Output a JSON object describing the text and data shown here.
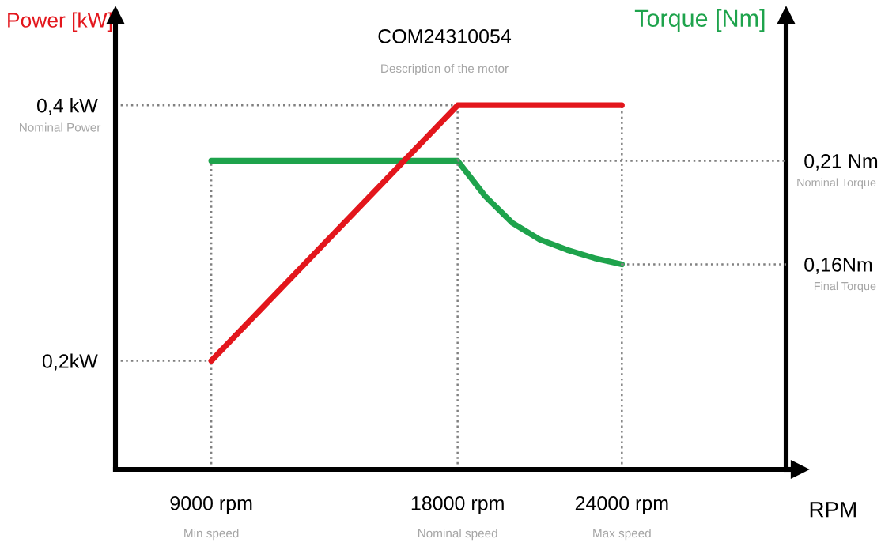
{
  "chart_data": {
    "type": "line",
    "title": "COM24310054",
    "subtitle": "Description of the motor",
    "xlabel": "RPM",
    "ylabel": "Power [kW]",
    "y2label": "Torque [Nm]",
    "series": [
      {
        "color": "#e3161c",
        "x": [
          9000,
          18000,
          24000
        ],
        "values": [
          0.2,
          0.4,
          0.4
        ]
      },
      {
        "color": "#1ea34c",
        "axis": "y2",
        "x": [
          9000,
          18000,
          19000,
          20000,
          21000,
          22000,
          23000,
          24000
        ],
        "values": [
          0.21,
          0.21,
          0.193,
          0.18,
          0.172,
          0.167,
          0.163,
          0.16
        ]
      }
    ],
    "xlim": [
      5500,
      30000
    ],
    "ylim": [
      0.115,
      0.47
    ],
    "y2lim": [
      0.061,
      0.28
    ],
    "xticks": [
      {
        "value": 9000,
        "label": "9000 rpm"
      },
      {
        "value": 18000,
        "label": "18000 rpm"
      },
      {
        "value": 24000,
        "label": "24000 rpm"
      }
    ],
    "yticks": [
      {
        "value": 0.2,
        "label": "0,2kW"
      },
      {
        "value": 0.4,
        "label": "0,4 kW"
      }
    ],
    "y2ticks": [
      {
        "value": 0.21,
        "label": "0,21 Nm"
      },
      {
        "value": 0.16,
        "label": "0,16Nm"
      }
    ],
    "annotations": [
      "Min speed",
      "Nominal speed",
      "Max speed",
      "Nominal Power",
      "Nominal Torque",
      "Final Torque"
    ],
    "ref_lines": [
      {
        "axis": "x",
        "value": 9000,
        "color": "#808080",
        "line_style": "dotted"
      },
      {
        "axis": "x",
        "value": 18000,
        "color": "#808080",
        "line_style": "dotted"
      },
      {
        "axis": "x",
        "value": 24000,
        "color": "#808080",
        "line_style": "dotted"
      },
      {
        "axis": "y",
        "value": 0.2,
        "color": "#808080",
        "line_style": "dotted"
      },
      {
        "axis": "y",
        "value": 0.4,
        "color": "#808080",
        "line_style": "dotted"
      },
      {
        "axis": "y2",
        "value": 0.21,
        "color": "#808080",
        "line_style": "dotted"
      },
      {
        "axis": "y2",
        "value": 0.16,
        "color": "#808080",
        "line_style": "dotted"
      }
    ],
    "grid": false,
    "legend": false,
    "marker": "none",
    "line_style": "solid"
  }
}
